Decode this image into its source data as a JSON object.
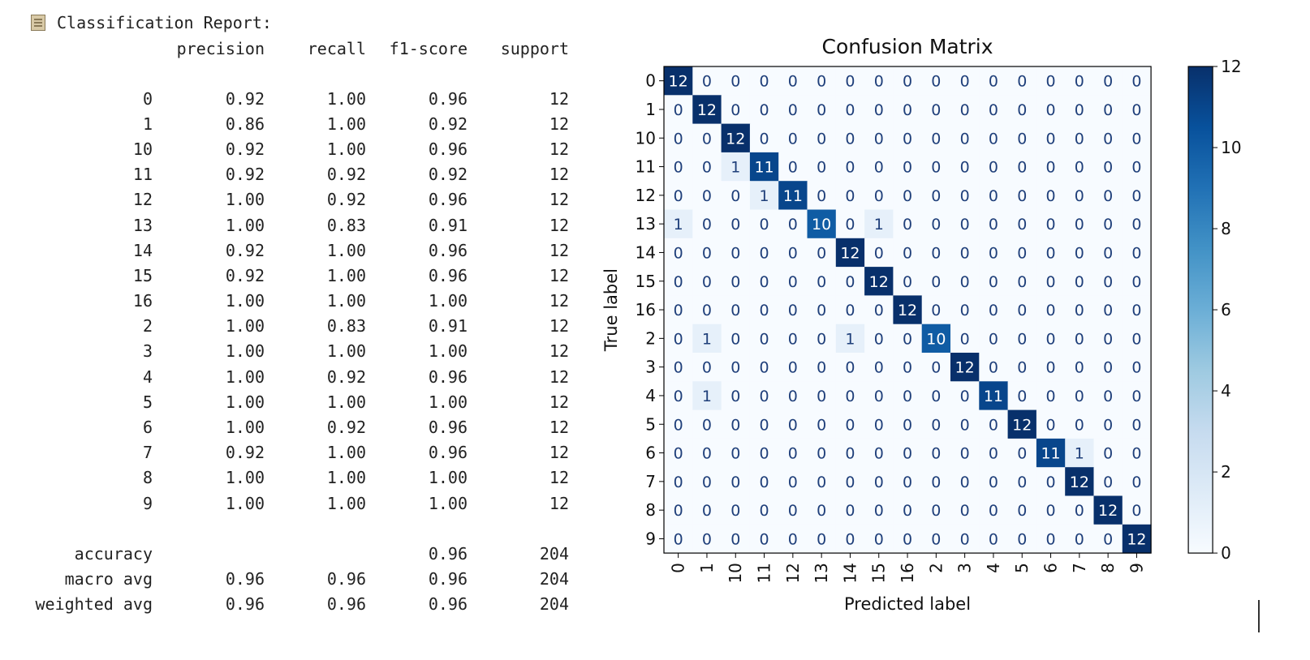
{
  "report": {
    "title": "Classification Report:",
    "icon": "clipboard-icon",
    "headers": [
      "",
      "precision",
      "recall",
      "f1-score",
      "support"
    ],
    "rows": [
      [
        "0",
        "0.92",
        "1.00",
        "0.96",
        "12"
      ],
      [
        "1",
        "0.86",
        "1.00",
        "0.92",
        "12"
      ],
      [
        "10",
        "0.92",
        "1.00",
        "0.96",
        "12"
      ],
      [
        "11",
        "0.92",
        "0.92",
        "0.92",
        "12"
      ],
      [
        "12",
        "1.00",
        "0.92",
        "0.96",
        "12"
      ],
      [
        "13",
        "1.00",
        "0.83",
        "0.91",
        "12"
      ],
      [
        "14",
        "0.92",
        "1.00",
        "0.96",
        "12"
      ],
      [
        "15",
        "0.92",
        "1.00",
        "0.96",
        "12"
      ],
      [
        "16",
        "1.00",
        "1.00",
        "1.00",
        "12"
      ],
      [
        "2",
        "1.00",
        "0.83",
        "0.91",
        "12"
      ],
      [
        "3",
        "1.00",
        "1.00",
        "1.00",
        "12"
      ],
      [
        "4",
        "1.00",
        "0.92",
        "0.96",
        "12"
      ],
      [
        "5",
        "1.00",
        "1.00",
        "1.00",
        "12"
      ],
      [
        "6",
        "1.00",
        "0.92",
        "0.96",
        "12"
      ],
      [
        "7",
        "0.92",
        "1.00",
        "0.96",
        "12"
      ],
      [
        "8",
        "1.00",
        "1.00",
        "1.00",
        "12"
      ],
      [
        "9",
        "1.00",
        "1.00",
        "1.00",
        "12"
      ]
    ],
    "summary": [
      [
        "accuracy",
        "",
        "",
        "0.96",
        "204"
      ],
      [
        "macro avg",
        "0.96",
        "0.96",
        "0.96",
        "204"
      ],
      [
        "weighted avg",
        "0.96",
        "0.96",
        "0.96",
        "204"
      ]
    ]
  },
  "chart_data": {
    "type": "heatmap",
    "title": "Confusion Matrix",
    "xlabel": "Predicted label",
    "ylabel": "True label",
    "labels": [
      "0",
      "1",
      "10",
      "11",
      "12",
      "13",
      "14",
      "15",
      "16",
      "2",
      "3",
      "4",
      "5",
      "6",
      "7",
      "8",
      "9"
    ],
    "matrix": [
      [
        12,
        0,
        0,
        0,
        0,
        0,
        0,
        0,
        0,
        0,
        0,
        0,
        0,
        0,
        0,
        0,
        0
      ],
      [
        0,
        12,
        0,
        0,
        0,
        0,
        0,
        0,
        0,
        0,
        0,
        0,
        0,
        0,
        0,
        0,
        0
      ],
      [
        0,
        0,
        12,
        0,
        0,
        0,
        0,
        0,
        0,
        0,
        0,
        0,
        0,
        0,
        0,
        0,
        0
      ],
      [
        0,
        0,
        1,
        11,
        0,
        0,
        0,
        0,
        0,
        0,
        0,
        0,
        0,
        0,
        0,
        0,
        0
      ],
      [
        0,
        0,
        0,
        1,
        11,
        0,
        0,
        0,
        0,
        0,
        0,
        0,
        0,
        0,
        0,
        0,
        0
      ],
      [
        1,
        0,
        0,
        0,
        0,
        10,
        0,
        1,
        0,
        0,
        0,
        0,
        0,
        0,
        0,
        0,
        0
      ],
      [
        0,
        0,
        0,
        0,
        0,
        0,
        12,
        0,
        0,
        0,
        0,
        0,
        0,
        0,
        0,
        0,
        0
      ],
      [
        0,
        0,
        0,
        0,
        0,
        0,
        0,
        12,
        0,
        0,
        0,
        0,
        0,
        0,
        0,
        0,
        0
      ],
      [
        0,
        0,
        0,
        0,
        0,
        0,
        0,
        0,
        12,
        0,
        0,
        0,
        0,
        0,
        0,
        0,
        0
      ],
      [
        0,
        1,
        0,
        0,
        0,
        0,
        1,
        0,
        0,
        10,
        0,
        0,
        0,
        0,
        0,
        0,
        0
      ],
      [
        0,
        0,
        0,
        0,
        0,
        0,
        0,
        0,
        0,
        0,
        12,
        0,
        0,
        0,
        0,
        0,
        0
      ],
      [
        0,
        1,
        0,
        0,
        0,
        0,
        0,
        0,
        0,
        0,
        0,
        11,
        0,
        0,
        0,
        0,
        0
      ],
      [
        0,
        0,
        0,
        0,
        0,
        0,
        0,
        0,
        0,
        0,
        0,
        0,
        12,
        0,
        0,
        0,
        0
      ],
      [
        0,
        0,
        0,
        0,
        0,
        0,
        0,
        0,
        0,
        0,
        0,
        0,
        0,
        11,
        1,
        0,
        0
      ],
      [
        0,
        0,
        0,
        0,
        0,
        0,
        0,
        0,
        0,
        0,
        0,
        0,
        0,
        0,
        12,
        0,
        0
      ],
      [
        0,
        0,
        0,
        0,
        0,
        0,
        0,
        0,
        0,
        0,
        0,
        0,
        0,
        0,
        0,
        12,
        0
      ],
      [
        0,
        0,
        0,
        0,
        0,
        0,
        0,
        0,
        0,
        0,
        0,
        0,
        0,
        0,
        0,
        0,
        12
      ]
    ],
    "colorbar": {
      "min": 0,
      "max": 12,
      "ticks": [
        "0",
        "2",
        "4",
        "6",
        "8",
        "10",
        "12"
      ],
      "colormap": "Blues"
    },
    "colors": {
      "low": "#f7fbff",
      "high": "#08306b",
      "text_dark": "#1f3f7a",
      "text_light": "#ffffff"
    }
  }
}
